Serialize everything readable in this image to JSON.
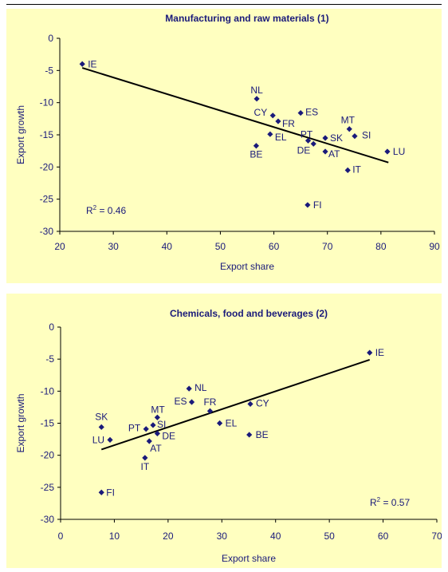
{
  "chart_data": [
    {
      "type": "scatter",
      "title": "Manufacturing and raw materials (1)",
      "xlabel": "Export share",
      "ylabel": "Export growth",
      "xlim": [
        20,
        90
      ],
      "ylim": [
        -30,
        0
      ],
      "xticks": [
        "20",
        "30",
        "40",
        "50",
        "60",
        "70",
        "80",
        "90"
      ],
      "yticks": [
        "0",
        "-5",
        "-10",
        "-15",
        "-20",
        "-25",
        "-30"
      ],
      "marker_color": "#1a1a7a",
      "r2_label": "0.46",
      "points": [
        {
          "label": "IE",
          "x": 24.2,
          "y": -4.0
        },
        {
          "label": "NL",
          "x": 56.8,
          "y": -9.4
        },
        {
          "label": "CY",
          "x": 59.8,
          "y": -12.0
        },
        {
          "label": "FR",
          "x": 60.8,
          "y": -12.9
        },
        {
          "label": "ES",
          "x": 65.0,
          "y": -11.6
        },
        {
          "label": "EL",
          "x": 59.3,
          "y": -14.9
        },
        {
          "label": "BE",
          "x": 56.7,
          "y": -16.7
        },
        {
          "label": "PT",
          "x": 66.4,
          "y": -15.9
        },
        {
          "label": "DE",
          "x": 67.4,
          "y": -16.4
        },
        {
          "label": "AT",
          "x": 69.6,
          "y": -17.6
        },
        {
          "label": "SK",
          "x": 69.6,
          "y": -15.5
        },
        {
          "label": "MT",
          "x": 74.1,
          "y": -14.1
        },
        {
          "label": "SI",
          "x": 75.1,
          "y": -15.2
        },
        {
          "label": "IT",
          "x": 73.8,
          "y": -20.5
        },
        {
          "label": "LU",
          "x": 81.2,
          "y": -17.6
        },
        {
          "label": "FI",
          "x": 66.3,
          "y": -25.9
        }
      ],
      "trendline": {
        "x": [
          24.2,
          81.4
        ],
        "y": [
          -4.6,
          -19.3
        ]
      }
    },
    {
      "type": "scatter",
      "title": "Chemicals, food and beverages (2)",
      "xlabel": "Export share",
      "ylabel": "Export growth",
      "xlim": [
        0,
        70
      ],
      "ylim": [
        -30,
        0
      ],
      "xticks": [
        "0",
        "10",
        "20",
        "30",
        "40",
        "50",
        "60",
        "70"
      ],
      "yticks": [
        "0",
        "-5",
        "-10",
        "-15",
        "-20",
        "-25",
        "-30"
      ],
      "marker_color": "#1a1a7a",
      "r2_label": "0.57",
      "points": [
        {
          "label": "IE",
          "x": 57.5,
          "y": -4.0
        },
        {
          "label": "NL",
          "x": 23.9,
          "y": -9.6
        },
        {
          "label": "ES",
          "x": 24.4,
          "y": -11.7
        },
        {
          "label": "FR",
          "x": 27.8,
          "y": -13.1
        },
        {
          "label": "CY",
          "x": 35.3,
          "y": -12.0
        },
        {
          "label": "EL",
          "x": 29.6,
          "y": -15.0
        },
        {
          "label": "BE",
          "x": 35.1,
          "y": -16.8
        },
        {
          "label": "MT",
          "x": 18.0,
          "y": -14.1
        },
        {
          "label": "SI",
          "x": 17.2,
          "y": -15.3
        },
        {
          "label": "PT",
          "x": 15.9,
          "y": -15.9
        },
        {
          "label": "DE",
          "x": 18.0,
          "y": -16.6
        },
        {
          "label": "AT",
          "x": 16.5,
          "y": -17.8
        },
        {
          "label": "IT",
          "x": 15.7,
          "y": -20.4
        },
        {
          "label": "SK",
          "x": 7.6,
          "y": -15.6
        },
        {
          "label": "LU",
          "x": 9.2,
          "y": -17.6
        },
        {
          "label": "FI",
          "x": 7.6,
          "y": -25.8
        }
      ],
      "trendline": {
        "x": [
          7.6,
          57.5
        ],
        "y": [
          -19.1,
          -5.1
        ]
      }
    }
  ]
}
